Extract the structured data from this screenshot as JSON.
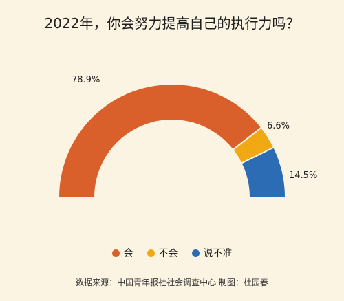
{
  "chart_data": {
    "type": "pie",
    "variant": "half-donut",
    "title": "2022年，你会努力提高自己的执行力吗？",
    "categories": [
      "会",
      "不会",
      "说不准"
    ],
    "values": [
      78.9,
      6.6,
      14.5
    ],
    "labels": [
      "78.9%",
      "6.6%",
      "14.5%"
    ],
    "colors": [
      "#d95f2b",
      "#f0a912",
      "#2b6cb4"
    ],
    "legend_placement": "bottom"
  },
  "source_text": "数据来源：中国青年报社社会调查中心   制图：杜园春"
}
